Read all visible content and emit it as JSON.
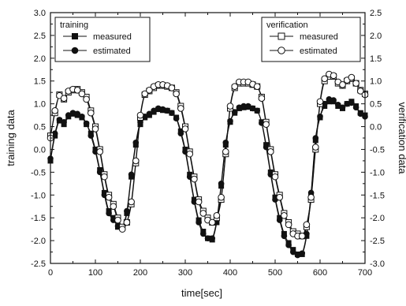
{
  "chart_data": {
    "type": "line",
    "xlabel": "time[sec]",
    "ylabel_left": "training data",
    "ylabel_right": "verification data",
    "xlim": [
      0,
      700
    ],
    "ylim_left": [
      -2.5,
      3.0
    ],
    "ylim_right": [
      -3.0,
      2.5
    ],
    "x_ticks": [
      "0",
      "100",
      "200",
      "300",
      "400",
      "500",
      "600",
      "700"
    ],
    "y_left_ticks": [
      "-2.5",
      "-2.0",
      "-1.5",
      "-1.0",
      "-0.5",
      "0.0",
      "0.5",
      "1.0",
      "1.5",
      "2.0",
      "2.5",
      "3.0"
    ],
    "y_right_ticks": [
      "-3.0",
      "-2.5",
      "-2.0",
      "-1.5",
      "-1.0",
      "-0.5",
      "0.0",
      "0.5",
      "1.0",
      "1.5",
      "2.0",
      "2.5"
    ],
    "grid": false,
    "legends": [
      {
        "title": "training",
        "placement": "top-left",
        "entries": [
          {
            "label": "measured",
            "series": "training_measured"
          },
          {
            "label": "estimated",
            "series": "training_estimated"
          }
        ]
      },
      {
        "title": "verification",
        "placement": "top-right",
        "entries": [
          {
            "label": "measured",
            "series": "verification_measured"
          },
          {
            "label": "estimated",
            "series": "verification_estimated"
          }
        ]
      }
    ],
    "series": [
      {
        "id": "training_measured",
        "name": "measured",
        "axis": "left",
        "marker": "filled-square",
        "color": "#111111",
        "x": [
          0,
          10,
          20,
          30,
          40,
          50,
          60,
          70,
          80,
          90,
          100,
          110,
          120,
          130,
          140,
          150,
          160,
          170,
          180,
          190,
          200,
          210,
          220,
          230,
          240,
          250,
          260,
          270,
          280,
          290,
          300,
          310,
          320,
          330,
          340,
          350,
          360,
          370,
          380,
          390,
          400,
          410,
          420,
          430,
          440,
          450,
          460,
          470,
          480,
          490,
          500,
          510,
          520,
          530,
          540,
          550,
          560,
          570,
          580,
          590,
          600,
          610,
          620,
          630,
          640,
          650,
          660,
          670,
          680,
          690,
          700
        ],
        "y": [
          -0.25,
          0.3,
          0.63,
          0.55,
          0.72,
          0.78,
          0.75,
          0.7,
          0.55,
          0.35,
          0.0,
          -0.45,
          -0.95,
          -1.35,
          -1.5,
          -1.7,
          -1.72,
          -1.4,
          -0.6,
          0.1,
          0.55,
          0.7,
          0.75,
          0.82,
          0.88,
          0.86,
          0.85,
          0.8,
          0.7,
          0.4,
          0.0,
          -0.55,
          -1.1,
          -1.55,
          -1.8,
          -1.95,
          -1.98,
          -1.6,
          -0.8,
          0.1,
          0.6,
          0.8,
          0.9,
          0.92,
          0.93,
          0.9,
          0.85,
          0.6,
          0.1,
          -0.5,
          -1.05,
          -1.5,
          -1.85,
          -2.05,
          -2.2,
          -2.3,
          -2.3,
          -1.9,
          -1.0,
          0.2,
          0.7,
          0.95,
          1.05,
          1.05,
          0.95,
          0.9,
          1.0,
          1.05,
          0.95,
          0.8,
          0.75
        ]
      },
      {
        "id": "training_estimated",
        "name": "estimated",
        "axis": "left",
        "marker": "filled-circle",
        "color": "#111111",
        "x": [
          0,
          10,
          20,
          30,
          40,
          50,
          60,
          70,
          80,
          90,
          100,
          110,
          120,
          130,
          140,
          150,
          160,
          170,
          180,
          190,
          200,
          210,
          220,
          230,
          240,
          250,
          260,
          270,
          280,
          290,
          300,
          310,
          320,
          330,
          340,
          350,
          360,
          370,
          380,
          390,
          400,
          410,
          420,
          430,
          440,
          450,
          460,
          470,
          480,
          490,
          500,
          510,
          520,
          530,
          540,
          550,
          560,
          570,
          580,
          590,
          600,
          610,
          620,
          630,
          640,
          650,
          660,
          670,
          680,
          690,
          700
        ],
        "y": [
          -0.2,
          0.35,
          0.65,
          0.6,
          0.75,
          0.8,
          0.78,
          0.72,
          0.57,
          0.3,
          -0.05,
          -0.5,
          -1.0,
          -1.4,
          -1.55,
          -1.68,
          -1.7,
          -1.35,
          -0.55,
          0.15,
          0.6,
          0.72,
          0.78,
          0.85,
          0.9,
          0.88,
          0.85,
          0.8,
          0.68,
          0.35,
          -0.05,
          -0.6,
          -1.15,
          -1.6,
          -1.85,
          -1.95,
          -1.95,
          -1.55,
          -0.75,
          0.15,
          0.62,
          0.82,
          0.92,
          0.95,
          0.95,
          0.9,
          0.85,
          0.58,
          0.05,
          -0.55,
          -1.1,
          -1.55,
          -1.9,
          -2.1,
          -2.25,
          -2.32,
          -2.28,
          -1.85,
          -0.95,
          0.25,
          0.72,
          1.0,
          1.1,
          1.08,
          0.98,
          0.92,
          1.0,
          1.02,
          0.92,
          0.78,
          0.72
        ]
      },
      {
        "id": "verification_measured",
        "name": "measured",
        "axis": "right",
        "marker": "open-square",
        "color": "#111111",
        "x": [
          0,
          10,
          20,
          30,
          40,
          50,
          60,
          70,
          80,
          90,
          100,
          110,
          120,
          130,
          140,
          150,
          160,
          170,
          180,
          190,
          200,
          210,
          220,
          230,
          240,
          250,
          260,
          270,
          280,
          290,
          300,
          310,
          320,
          330,
          340,
          350,
          360,
          370,
          380,
          390,
          400,
          410,
          420,
          430,
          440,
          450,
          460,
          470,
          480,
          490,
          500,
          510,
          520,
          530,
          540,
          550,
          560,
          570,
          580,
          590,
          600,
          610,
          620,
          630,
          640,
          650,
          660,
          670,
          680,
          690,
          700
        ],
        "y": [
          -0.2,
          0.3,
          0.7,
          0.6,
          0.75,
          0.8,
          0.82,
          0.75,
          0.65,
          0.35,
          0.0,
          -0.5,
          -1.05,
          -1.5,
          -1.7,
          -2.0,
          -2.2,
          -2.1,
          -1.7,
          -0.8,
          0.2,
          0.7,
          0.78,
          0.85,
          0.9,
          0.9,
          0.88,
          0.85,
          0.75,
          0.45,
          0.0,
          -0.55,
          -1.1,
          -1.6,
          -1.85,
          -2.0,
          -2.1,
          -2.0,
          -1.6,
          -0.6,
          0.4,
          0.85,
          0.95,
          0.95,
          0.95,
          0.92,
          0.88,
          0.65,
          0.1,
          -0.5,
          -1.05,
          -1.5,
          -1.9,
          -2.1,
          -2.3,
          -2.35,
          -2.4,
          -2.2,
          -1.6,
          -0.5,
          0.5,
          1.0,
          1.1,
          1.1,
          0.95,
          0.9,
          1.0,
          1.05,
          0.95,
          0.8,
          0.72
        ]
      },
      {
        "id": "verification_estimated",
        "name": "estimated",
        "axis": "right",
        "marker": "open-circle",
        "color": "#111111",
        "x": [
          0,
          10,
          20,
          30,
          40,
          50,
          60,
          70,
          80,
          90,
          100,
          110,
          120,
          130,
          140,
          150,
          160,
          170,
          180,
          190,
          200,
          210,
          220,
          230,
          240,
          250,
          260,
          270,
          280,
          290,
          300,
          310,
          320,
          330,
          340,
          350,
          360,
          370,
          380,
          390,
          400,
          410,
          420,
          430,
          440,
          450,
          460,
          470,
          480,
          490,
          500,
          510,
          520,
          530,
          540,
          550,
          560,
          570,
          580,
          590,
          600,
          610,
          620,
          630,
          640,
          650,
          660,
          670,
          680,
          690,
          700
        ],
        "y": [
          -0.25,
          0.35,
          0.68,
          0.62,
          0.78,
          0.82,
          0.8,
          0.72,
          0.6,
          0.3,
          -0.05,
          -0.55,
          -1.1,
          -1.55,
          -1.75,
          -2.05,
          -2.25,
          -2.1,
          -1.65,
          -0.75,
          0.25,
          0.72,
          0.8,
          0.88,
          0.92,
          0.92,
          0.9,
          0.85,
          0.72,
          0.4,
          -0.05,
          -0.6,
          -1.15,
          -1.65,
          -1.9,
          -2.05,
          -2.1,
          -1.95,
          -1.55,
          -0.55,
          0.45,
          0.88,
          0.98,
          0.98,
          0.98,
          0.93,
          0.88,
          0.62,
          0.05,
          -0.55,
          -1.1,
          -1.55,
          -1.95,
          -2.15,
          -2.35,
          -2.4,
          -2.4,
          -2.15,
          -1.55,
          -0.45,
          0.55,
          1.05,
          1.15,
          1.12,
          0.98,
          0.92,
          1.02,
          1.08,
          0.95,
          0.78,
          0.7
        ]
      }
    ]
  }
}
